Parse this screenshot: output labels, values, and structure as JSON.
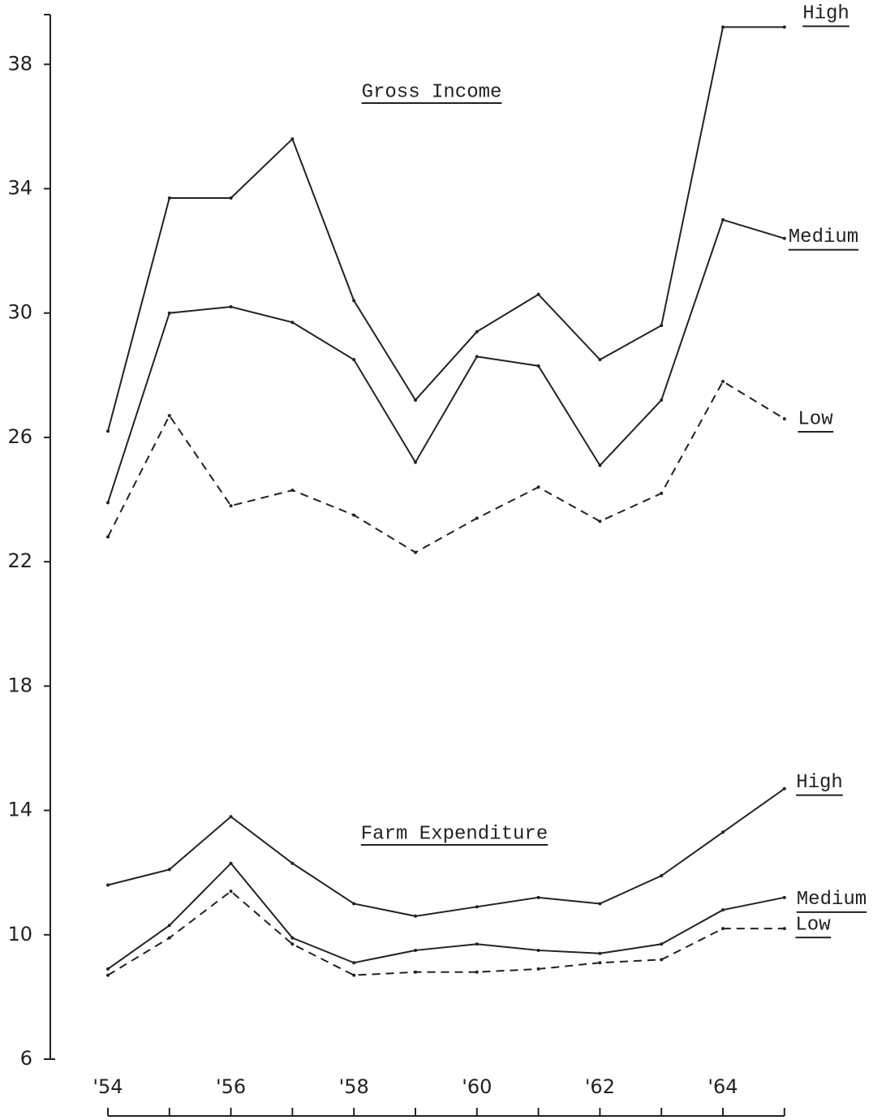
{
  "chart_data": {
    "type": "line",
    "categories": [
      "'54",
      null,
      "'56",
      null,
      "'58",
      null,
      "'60",
      null,
      "'62",
      null,
      "'64",
      null
    ],
    "ylim": [
      6,
      39.6
    ],
    "yticks": [
      6,
      10,
      14,
      18,
      22,
      26,
      30,
      34,
      38
    ],
    "groups": [
      {
        "title": "Gross Income",
        "series": [
          {
            "name": "High",
            "color": "#222222",
            "style": "solid",
            "values": [
              26.2,
              33.7,
              33.7,
              35.6,
              30.4,
              27.2,
              29.4,
              30.6,
              28.5,
              29.6,
              39.2,
              39.2
            ]
          },
          {
            "name": "Medium",
            "color": "#222222",
            "style": "solid",
            "values": [
              23.9,
              30.0,
              30.2,
              29.7,
              28.5,
              25.2,
              28.6,
              28.3,
              25.1,
              27.2,
              33.0,
              32.4
            ]
          },
          {
            "name": "Low",
            "color": "#222222",
            "style": "dashed",
            "values": [
              22.8,
              26.7,
              23.8,
              24.3,
              23.5,
              22.3,
              23.4,
              24.4,
              23.3,
              24.2,
              27.8,
              26.6
            ]
          }
        ]
      },
      {
        "title": "Farm Expenditure",
        "series": [
          {
            "name": "High",
            "color": "#222222",
            "style": "solid",
            "values": [
              11.6,
              12.1,
              13.8,
              12.3,
              11.0,
              10.6,
              10.9,
              11.2,
              11.0,
              11.9,
              13.3,
              14.7
            ]
          },
          {
            "name": "Medium",
            "color": "#222222",
            "style": "solid",
            "values": [
              8.9,
              10.3,
              12.3,
              9.9,
              9.1,
              9.5,
              9.7,
              9.5,
              9.4,
              9.7,
              10.8,
              11.2
            ]
          },
          {
            "name": "Low",
            "color": "#222222",
            "style": "dashed",
            "values": [
              8.7,
              9.9,
              11.4,
              9.7,
              8.7,
              8.8,
              8.8,
              8.9,
              9.1,
              9.2,
              10.2,
              10.2
            ]
          }
        ]
      }
    ]
  }
}
